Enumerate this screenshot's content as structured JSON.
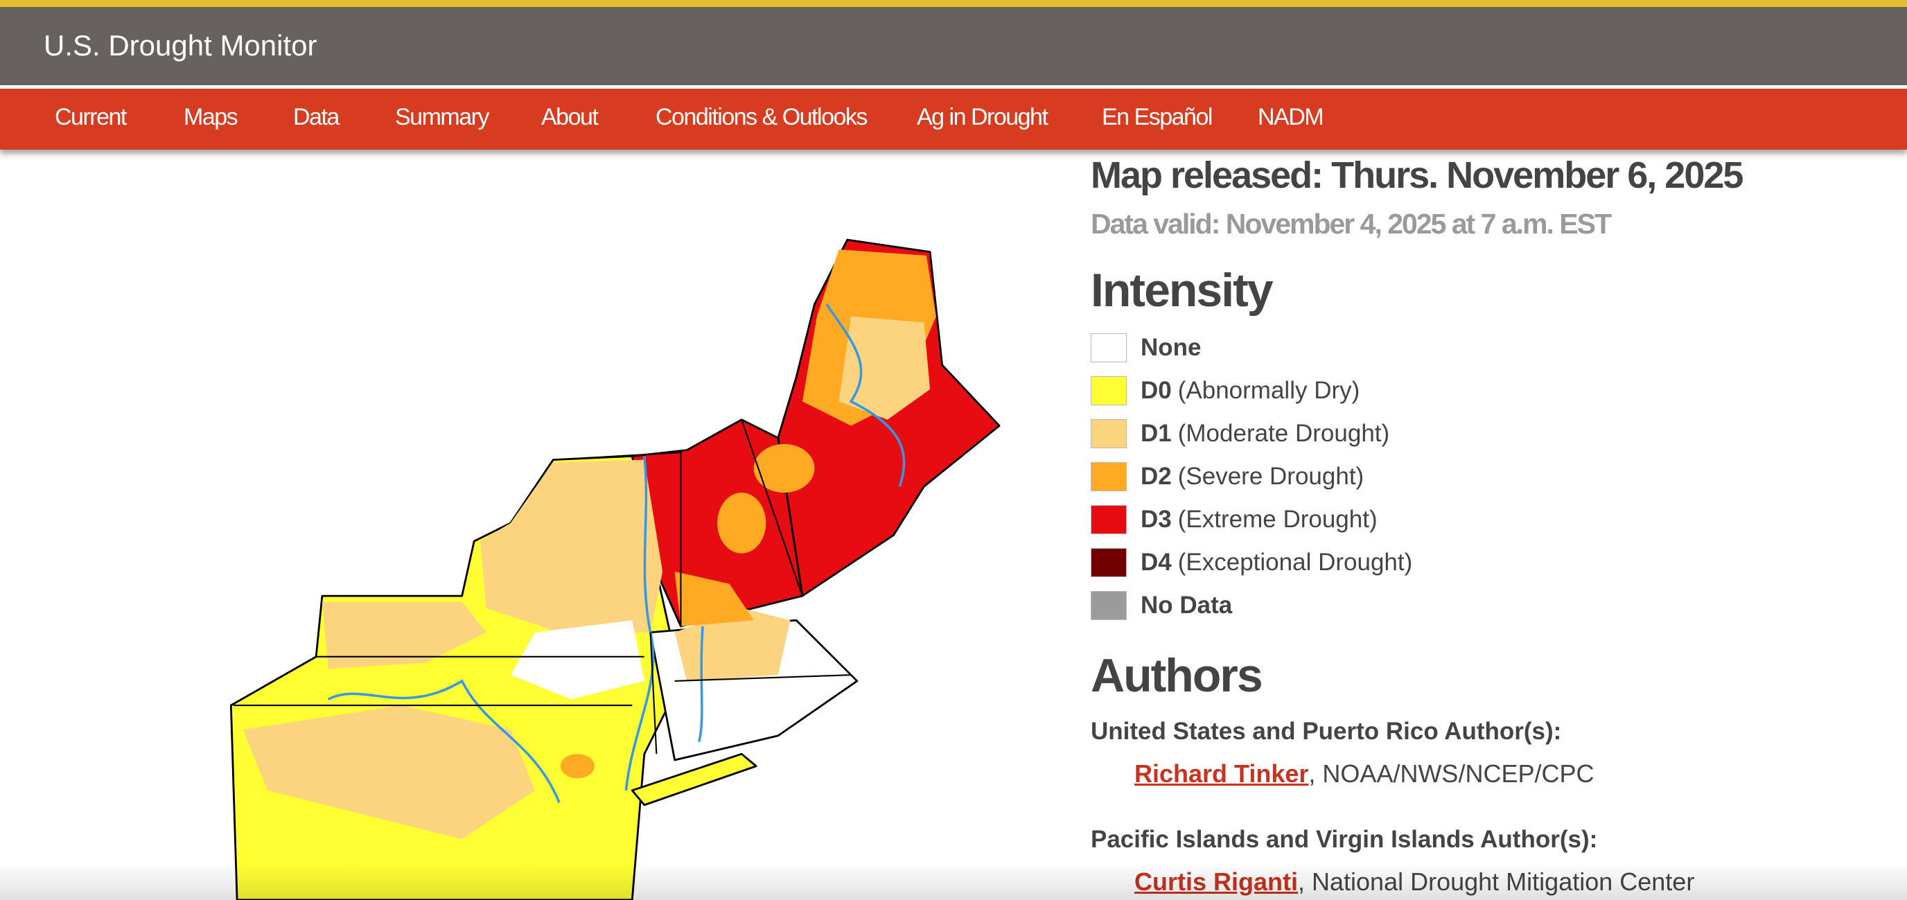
{
  "header": {
    "title": "U.S. Drought Monitor"
  },
  "nav": {
    "items": [
      "Current",
      "Maps",
      "Data",
      "Summary",
      "About",
      "Conditions & Outlooks",
      "Ag in Drought",
      "En Español",
      "NADM"
    ]
  },
  "info": {
    "released": "Map released: Thurs. November 6, 2025",
    "valid": "Data valid: November 4, 2025 at 7 a.m. EST"
  },
  "legend": {
    "title": "Intensity",
    "items": [
      {
        "code": "None",
        "color": "#ffffff"
      },
      {
        "code": "D0",
        "desc": "(Abnormally Dry)",
        "color": "#ffff33"
      },
      {
        "code": "D1",
        "desc": "(Moderate Drought)",
        "color": "#fcd37f"
      },
      {
        "code": "D2",
        "desc": "(Severe Drought)",
        "color": "#ffaa22"
      },
      {
        "code": "D3",
        "desc": "(Extreme Drought)",
        "color": "#e60c12"
      },
      {
        "code": "D4",
        "desc": "(Exceptional Drought)",
        "color": "#730000"
      },
      {
        "code": "No Data",
        "color": "#9b9b9b"
      }
    ]
  },
  "authors": {
    "title": "Authors",
    "groups": [
      {
        "heading": "United States and Puerto Rico Author(s):",
        "name": "Richard Tinker",
        "affiliation": ", NOAA/NWS/NCEP/CPC"
      },
      {
        "heading": "Pacific Islands and Virgin Islands Author(s):",
        "name": "Curtis Riganti",
        "affiliation": ", National Drought Mitigation Center"
      }
    ]
  }
}
